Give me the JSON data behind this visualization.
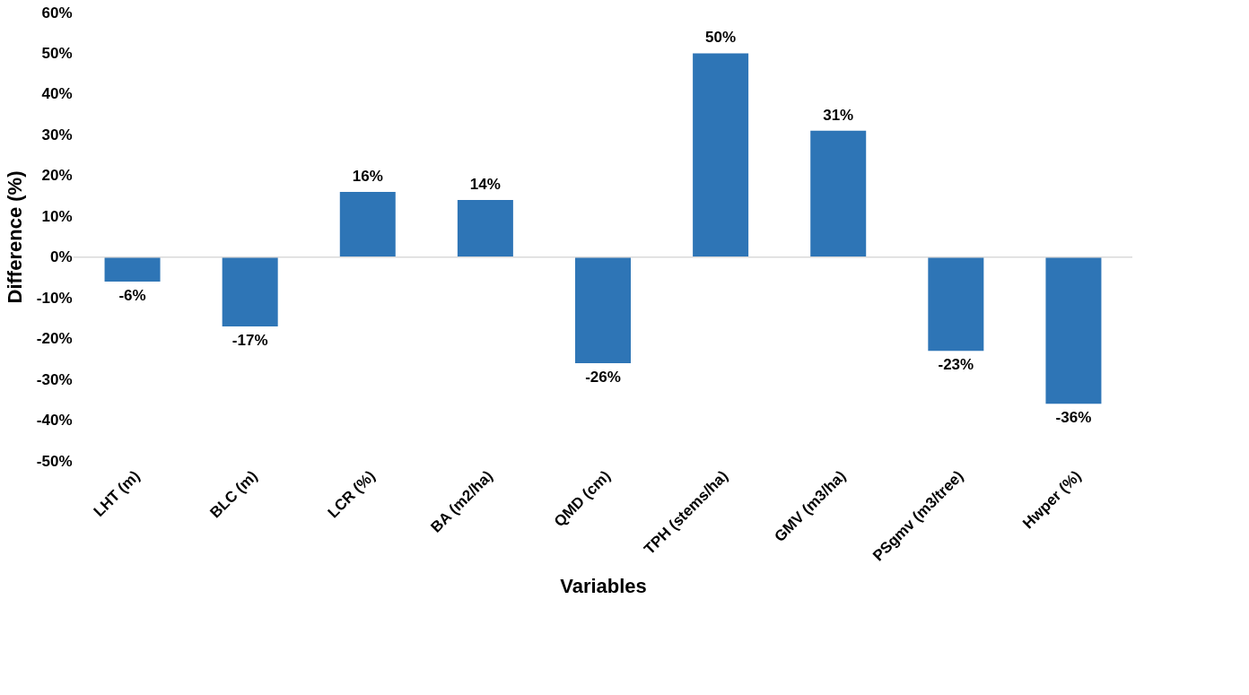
{
  "chart_data": {
    "type": "bar",
    "xlabel": "Variables",
    "ylabel": "Difference (%)",
    "categories": [
      "LHT (m)",
      "BLC (m)",
      "LCR (%)",
      "BA (m2/ha)",
      "QMD (cm)",
      "TPH (stems/ha)",
      "GMV (m3/ha)",
      "PSgmv (m3/tree)",
      "Hwper (%)"
    ],
    "values": [
      -6,
      -17,
      16,
      14,
      -26,
      50,
      31,
      -23,
      -36
    ],
    "value_labels": [
      "-6%",
      "-17%",
      "16%",
      "14%",
      "-26%",
      "50%",
      "31%",
      "-23%",
      "-36%"
    ],
    "color": "#2e75b6",
    "ylim": [
      -50,
      60
    ],
    "yticks": [
      {
        "value": -50,
        "label": "-50%"
      },
      {
        "value": -40,
        "label": "-40%"
      },
      {
        "value": -30,
        "label": "-30%"
      },
      {
        "value": -20,
        "label": "-20%"
      },
      {
        "value": -10,
        "label": "-10%"
      },
      {
        "value": 0,
        "label": "0%"
      },
      {
        "value": 10,
        "label": "10%"
      },
      {
        "value": 20,
        "label": "20%"
      },
      {
        "value": 30,
        "label": "30%"
      },
      {
        "value": 40,
        "label": "40%"
      },
      {
        "value": 50,
        "label": "50%"
      },
      {
        "value": 60,
        "label": "60%"
      }
    ],
    "ref_lines": [
      {
        "axis": "y",
        "value": 0,
        "color": "#d9d9d9"
      }
    ],
    "grid": false
  }
}
